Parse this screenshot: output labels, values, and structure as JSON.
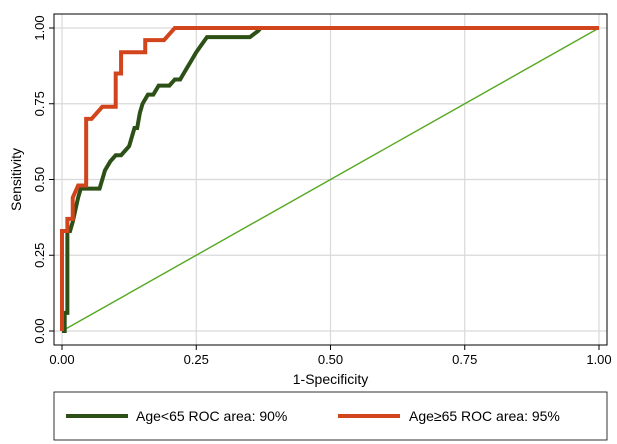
{
  "chart_data": {
    "type": "line",
    "xlabel": "1-Specificity",
    "ylabel": "Sensitivity",
    "xlim": [
      0,
      1
    ],
    "ylim": [
      0,
      1
    ],
    "x_ticks": [
      "0.00",
      "0.25",
      "0.50",
      "0.75",
      "1.00"
    ],
    "y_ticks": [
      "0.00",
      "0.25",
      "0.50",
      "0.75",
      "1.00"
    ],
    "grid": true,
    "legend_position": "bottom",
    "series": [
      {
        "name": "Age<65 ROC area: 90%",
        "color": "#2d5016",
        "x": [
          0,
          0.005,
          0.005,
          0.01,
          0.01,
          0.015,
          0.02,
          0.025,
          0.03,
          0.035,
          0.045,
          0.05,
          0.055,
          0.07,
          0.08,
          0.09,
          0.1,
          0.11,
          0.125,
          0.13,
          0.135,
          0.14,
          0.145,
          0.15,
          0.16,
          0.17,
          0.18,
          0.2,
          0.21,
          0.22,
          0.23,
          0.24,
          0.25,
          0.27,
          0.3,
          0.34,
          0.35,
          0.365,
          0.37,
          0.5,
          0.75,
          1.0
        ],
        "y": [
          0,
          0,
          0.06,
          0.06,
          0.33,
          0.33,
          0.36,
          0.4,
          0.44,
          0.47,
          0.47,
          0.47,
          0.47,
          0.47,
          0.53,
          0.56,
          0.58,
          0.58,
          0.61,
          0.64,
          0.67,
          0.67,
          0.72,
          0.75,
          0.78,
          0.78,
          0.81,
          0.81,
          0.83,
          0.83,
          0.86,
          0.89,
          0.92,
          0.97,
          0.97,
          0.97,
          0.97,
          0.99,
          1.0,
          1.0,
          1.0,
          1.0
        ]
      },
      {
        "name": "Age≥65 ROC area: 95%",
        "color": "#d2441c",
        "x": [
          0,
          0,
          0.01,
          0.01,
          0.02,
          0.02,
          0.03,
          0.04,
          0.045,
          0.045,
          0.055,
          0.075,
          0.1,
          0.1,
          0.11,
          0.11,
          0.14,
          0.155,
          0.155,
          0.19,
          0.2,
          0.21,
          0.22,
          0.24,
          0.5,
          0.75,
          1.0
        ],
        "y": [
          0,
          0.33,
          0.33,
          0.37,
          0.37,
          0.44,
          0.48,
          0.48,
          0.48,
          0.7,
          0.7,
          0.74,
          0.74,
          0.85,
          0.85,
          0.92,
          0.92,
          0.92,
          0.96,
          0.96,
          0.98,
          1.0,
          1.0,
          1.0,
          1.0,
          1.0,
          1.0
        ]
      },
      {
        "name": "",
        "color": "#55a821",
        "x": [
          0,
          1
        ],
        "y": [
          0,
          1
        ]
      }
    ]
  }
}
